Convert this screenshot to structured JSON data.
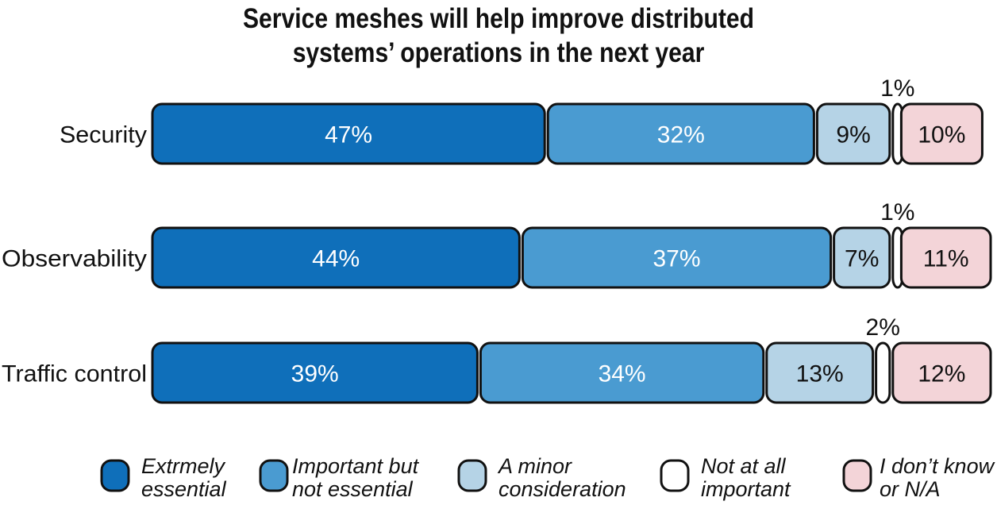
{
  "chart_data": {
    "type": "stacked-bar-horizontal",
    "title": [
      "Service meshes will help improve distributed",
      "systems’ operations in the next year"
    ],
    "xlabel": "",
    "ylabel": "",
    "xlim": [
      0,
      100
    ],
    "categories": [
      "Security",
      "Observability",
      "Traffic control"
    ],
    "series": [
      {
        "name": "Extrmely essential",
        "legend_label": [
          "Extrmely",
          "essential"
        ],
        "color": "#0f6fba",
        "label_color": "#ffffff",
        "values": [
          47,
          44,
          39
        ],
        "labels": [
          "47%",
          "44%",
          "39%"
        ]
      },
      {
        "name": "Important but not essential",
        "legend_label": [
          "Important but",
          "not essential"
        ],
        "color": "#4a9bd1",
        "label_color": "#ffffff",
        "values": [
          32,
          37,
          34
        ],
        "labels": [
          "32%",
          "37%",
          "34%"
        ]
      },
      {
        "name": "A minor consideration",
        "legend_label": [
          "A minor",
          "consideration"
        ],
        "color": "#b5d3e6",
        "label_color": "#111111",
        "values": [
          9,
          7,
          13
        ],
        "labels": [
          "9%",
          "7%",
          "13%"
        ]
      },
      {
        "name": "Not at all important",
        "legend_label": [
          "Not at all",
          "important"
        ],
        "color": "#ffffff",
        "label_color": "#111111",
        "values": [
          1,
          1,
          2
        ],
        "labels": [
          "1%",
          "1%",
          "2%"
        ],
        "label_position": "above"
      },
      {
        "name": "I don’t know or N/A",
        "legend_label": [
          "I don’t know",
          "or N/A"
        ],
        "color": "#f3d4d8",
        "label_color": "#111111",
        "values": [
          10,
          11,
          12
        ],
        "labels": [
          "10%",
          "11%",
          "12%"
        ]
      }
    ],
    "legend_position": "bottom",
    "grid": false
  }
}
